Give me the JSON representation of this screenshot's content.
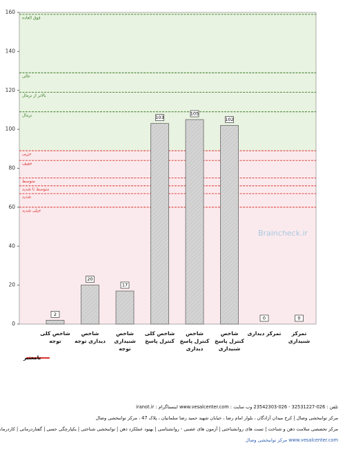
{
  "chart_data": {
    "type": "bar",
    "categories": [
      "شاخص کلی توجه",
      "شاخص دیداری توجه",
      "شاخص شنیداری توجه",
      "شاخص کلی کنترل پاسخ",
      "شاخص کنترل پاسخ دیداری",
      "شاخص کنترل پاسخ شنیداری",
      "تمرکز دیداری",
      "تمرکز شنیداری"
    ],
    "values": [
      2,
      20,
      17,
      103,
      105,
      102,
      0,
      0
    ],
    "color": "#d4d4d4",
    "ylim": [
      0,
      160
    ],
    "yticks": [
      0,
      20,
      40,
      60,
      80,
      100,
      120,
      140,
      160
    ],
    "bands": [
      {
        "from": 89,
        "to": 160,
        "color": "#e9f3e1"
      },
      {
        "from": 0,
        "to": 89,
        "color": "#fbeaed"
      }
    ],
    "reference_lines": [
      {
        "name": "فوق العاده",
        "value": 159,
        "color": "#3a7a2a"
      },
      {
        "name": "عالی",
        "value": 129,
        "color": "#3a7a2a"
      },
      {
        "name": "بالاتر از نرمال",
        "value": 119,
        "color": "#3a7a2a"
      },
      {
        "name": "نرمال",
        "value": 109,
        "color": "#3a7a2a"
      },
      {
        "name": "جزیی",
        "value": 89,
        "color": "#d9302b"
      },
      {
        "name": "خفیف",
        "value": 84,
        "color": "#d9302b"
      },
      {
        "name": "متوسط",
        "value": 75,
        "color": "#d9302b"
      },
      {
        "name": "متوسط تا شدید",
        "value": 71,
        "color": "#d9302b"
      },
      {
        "name": "شدید",
        "value": 67,
        "color": "#d9302b"
      },
      {
        "name": "خیلی شدید",
        "value": 60,
        "color": "#d9302b"
      }
    ],
    "legend": [
      {
        "name": "نامعتبر",
        "color": "#d9302b"
      }
    ],
    "watermark": "Braincheck.ir"
  },
  "footer": {
    "lines": [
      "تلفن : 026-32531227 - 026-23542303     وب سایت : www.vesalcenter.com     اینستاگرام : iranot.ir",
      "مرکز توانبخشی وصال | کرج میدان آزادگان ، بلوار امام رضا ، خیابان شهید حمید رضا سلمانیان ، پلاک 47 ، مرکز توانبخشی وصال",
      "مرکز تخصصی سلامت ذهن و شناخت | تست های روانشناختی | آزمون های عصبی - روانشناسی | بهبود عملکرد ذهن | توانبخشی شناختی | یکپارچگی حسی | گفتاردرمانی | کاردرمانی",
      "www.vesalcenter.com مرکز توانبخشی وصال"
    ]
  }
}
